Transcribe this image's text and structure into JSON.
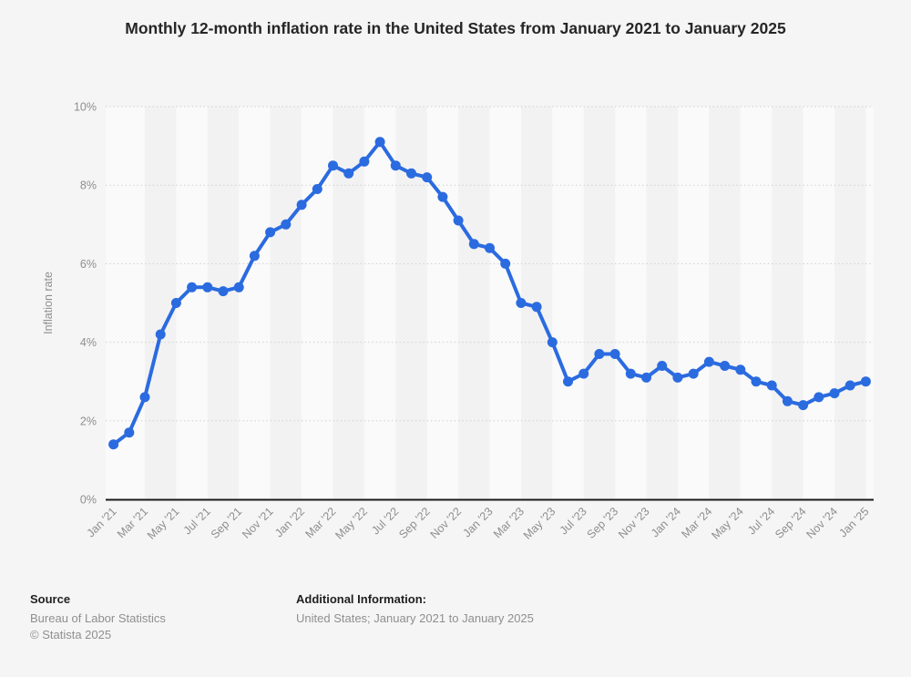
{
  "title": "Monthly 12-month inflation rate in the United States from January 2021 to January 2025",
  "chart_data": {
    "type": "line",
    "title": "Monthly 12-month inflation rate in the United States from January 2021 to January 2025",
    "xlabel": "",
    "ylabel": "Inflation rate",
    "ylim": [
      0,
      10
    ],
    "yticks": [
      0,
      2,
      4,
      6,
      8,
      10
    ],
    "ytick_suffix": "%",
    "xtick_every": 2,
    "grid": "horizontal-dotted",
    "legend": "none",
    "alternating_vertical_bands": true,
    "categories": [
      "Jan '21",
      "Feb '21",
      "Mar '21",
      "Apr '21",
      "May '21",
      "Jun '21",
      "Jul '21",
      "Aug '21",
      "Sep '21",
      "Oct '21",
      "Nov '21",
      "Dec '21",
      "Jan '22",
      "Feb '22",
      "Mar '22",
      "Apr '22",
      "May '22",
      "Jun '22",
      "Jul '22",
      "Aug '22",
      "Sep '22",
      "Oct '22",
      "Nov '22",
      "Dec '22",
      "Jan '23",
      "Feb '23",
      "Mar '23",
      "Apr '23",
      "May '23",
      "Jun '23",
      "Jul '23",
      "Aug '23",
      "Sep '23",
      "Oct '23",
      "Nov '23",
      "Dec '23",
      "Jan '24",
      "Feb '24",
      "Mar '24",
      "Apr '24",
      "May '24",
      "Jun '24",
      "Jul '24",
      "Aug '24",
      "Sep '24",
      "Oct '24",
      "Nov '24",
      "Dec '24",
      "Jan '25"
    ],
    "series": [
      {
        "name": "Inflation rate",
        "values": [
          1.4,
          1.7,
          2.6,
          4.2,
          5.0,
          5.4,
          5.4,
          5.3,
          5.4,
          6.2,
          6.8,
          7.0,
          7.5,
          7.9,
          8.5,
          8.3,
          8.6,
          9.1,
          8.5,
          8.3,
          8.2,
          7.7,
          7.1,
          6.5,
          6.4,
          6.0,
          5.0,
          4.9,
          4.0,
          3.0,
          3.2,
          3.7,
          3.7,
          3.2,
          3.1,
          3.4,
          3.1,
          3.2,
          3.5,
          3.4,
          3.3,
          3.0,
          2.9,
          2.5,
          2.4,
          2.6,
          2.7,
          2.9,
          3.0
        ]
      }
    ]
  },
  "colors": {
    "series_blue": "#2b6be0",
    "page_background": "#f5f5f5",
    "band_light": "#fafafa",
    "band_dark": "#f2f2f2",
    "gridline": "#cfcfcf",
    "axis_line": "#1a1a1a",
    "label_gray": "#8e8e8e",
    "title_color": "#262626"
  },
  "footer": {
    "source_label": "Source",
    "source_name": "Bureau of Labor Statistics",
    "copyright": "© Statista 2025",
    "additional_label": "Additional Information:",
    "additional_text": "United States; January 2021 to January 2025"
  }
}
